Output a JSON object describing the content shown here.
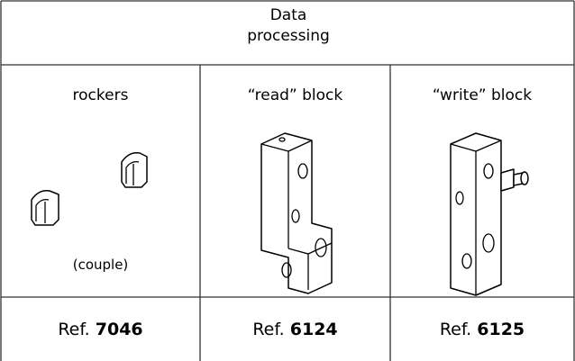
{
  "header": {
    "title": "Data processing"
  },
  "columns": [
    {
      "label": "rockers",
      "note": "(couple)",
      "ref": {
        "prefix": "Ref.",
        "number": "7046"
      }
    },
    {
      "label": "“read” block",
      "ref": {
        "prefix": "Ref.",
        "number": "6124"
      }
    },
    {
      "label": "“write” block",
      "ref": {
        "prefix": "Ref.",
        "number": "6125"
      }
    }
  ]
}
